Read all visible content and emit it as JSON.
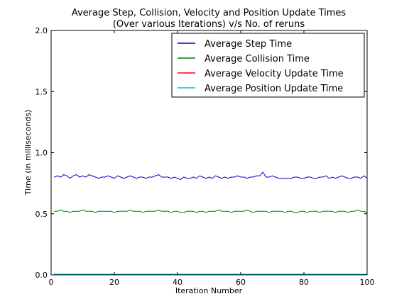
{
  "chart_data": {
    "type": "line",
    "title_lines": [
      "Average Step, Collision, Velocity and Position Update Times",
      "(Over various Iterations) v/s No. of reruns"
    ],
    "xlabel": "Iteration Number",
    "ylabel": "Time (in milliseconds)",
    "xlim": [
      0,
      100
    ],
    "ylim": [
      0.0,
      2.0
    ],
    "xticks": [
      "0",
      "20",
      "40",
      "60",
      "80",
      "100"
    ],
    "yticks": [
      "0.0",
      "0.5",
      "1.0",
      "1.5",
      "2.0"
    ],
    "grid": false,
    "legend_position": "top-right",
    "x": [
      1,
      2,
      3,
      4,
      5,
      6,
      7,
      8,
      9,
      10,
      11,
      12,
      13,
      14,
      15,
      16,
      17,
      18,
      19,
      20,
      21,
      22,
      23,
      24,
      25,
      26,
      27,
      28,
      29,
      30,
      31,
      32,
      33,
      34,
      35,
      36,
      37,
      38,
      39,
      40,
      41,
      42,
      43,
      44,
      45,
      46,
      47,
      48,
      49,
      50,
      51,
      52,
      53,
      54,
      55,
      56,
      57,
      58,
      59,
      60,
      61,
      62,
      63,
      64,
      65,
      66,
      67,
      68,
      69,
      70,
      71,
      72,
      73,
      74,
      75,
      76,
      77,
      78,
      79,
      80,
      81,
      82,
      83,
      84,
      85,
      86,
      87,
      88,
      89,
      90,
      91,
      92,
      93,
      94,
      95,
      96,
      97,
      98,
      99,
      100
    ],
    "series": [
      {
        "name": "Average Step Time",
        "color": "#0000cc",
        "values": [
          0.8,
          0.81,
          0.8,
          0.82,
          0.81,
          0.79,
          0.81,
          0.82,
          0.8,
          0.81,
          0.8,
          0.82,
          0.81,
          0.8,
          0.79,
          0.8,
          0.8,
          0.81,
          0.8,
          0.79,
          0.81,
          0.8,
          0.79,
          0.8,
          0.81,
          0.8,
          0.79,
          0.8,
          0.8,
          0.79,
          0.8,
          0.8,
          0.81,
          0.82,
          0.8,
          0.8,
          0.8,
          0.79,
          0.8,
          0.79,
          0.78,
          0.8,
          0.79,
          0.79,
          0.8,
          0.79,
          0.81,
          0.8,
          0.79,
          0.8,
          0.79,
          0.81,
          0.8,
          0.79,
          0.8,
          0.79,
          0.8,
          0.8,
          0.81,
          0.8,
          0.8,
          0.79,
          0.8,
          0.8,
          0.81,
          0.81,
          0.84,
          0.8,
          0.8,
          0.81,
          0.8,
          0.79,
          0.79,
          0.79,
          0.79,
          0.79,
          0.8,
          0.8,
          0.79,
          0.79,
          0.8,
          0.8,
          0.79,
          0.79,
          0.8,
          0.8,
          0.81,
          0.79,
          0.8,
          0.79,
          0.8,
          0.81,
          0.8,
          0.79,
          0.79,
          0.8,
          0.8,
          0.79,
          0.81,
          0.79
        ]
      },
      {
        "name": "Average Collision Time",
        "color": "#008000",
        "values": [
          0.52,
          0.52,
          0.53,
          0.52,
          0.52,
          0.51,
          0.52,
          0.52,
          0.52,
          0.53,
          0.52,
          0.52,
          0.52,
          0.51,
          0.52,
          0.52,
          0.52,
          0.52,
          0.52,
          0.51,
          0.52,
          0.52,
          0.52,
          0.52,
          0.53,
          0.52,
          0.52,
          0.52,
          0.51,
          0.52,
          0.52,
          0.52,
          0.52,
          0.53,
          0.52,
          0.52,
          0.52,
          0.51,
          0.52,
          0.52,
          0.51,
          0.51,
          0.52,
          0.52,
          0.52,
          0.51,
          0.52,
          0.52,
          0.51,
          0.52,
          0.52,
          0.52,
          0.53,
          0.52,
          0.52,
          0.52,
          0.51,
          0.52,
          0.52,
          0.52,
          0.52,
          0.53,
          0.52,
          0.51,
          0.52,
          0.52,
          0.52,
          0.52,
          0.51,
          0.52,
          0.52,
          0.52,
          0.52,
          0.51,
          0.52,
          0.52,
          0.51,
          0.51,
          0.52,
          0.52,
          0.51,
          0.52,
          0.52,
          0.52,
          0.51,
          0.52,
          0.52,
          0.52,
          0.52,
          0.51,
          0.52,
          0.52,
          0.52,
          0.51,
          0.52,
          0.52,
          0.53,
          0.52,
          0.52,
          0.51
        ]
      },
      {
        "name": "Average Velocity Update Time",
        "color": "#ff0000",
        "values": [
          0.004,
          0.004,
          0.004,
          0.004,
          0.004,
          0.004,
          0.004,
          0.004,
          0.004,
          0.004,
          0.004,
          0.004,
          0.004,
          0.004,
          0.004,
          0.004,
          0.004,
          0.004,
          0.004,
          0.004,
          0.004,
          0.004,
          0.004,
          0.004,
          0.004,
          0.004,
          0.004,
          0.004,
          0.004,
          0.004,
          0.004,
          0.004,
          0.004,
          0.004,
          0.004,
          0.004,
          0.004,
          0.004,
          0.004,
          0.004,
          0.004,
          0.004,
          0.004,
          0.004,
          0.004,
          0.004,
          0.004,
          0.004,
          0.004,
          0.004,
          0.004,
          0.004,
          0.004,
          0.004,
          0.004,
          0.004,
          0.004,
          0.004,
          0.004,
          0.004,
          0.004,
          0.004,
          0.004,
          0.004,
          0.004,
          0.004,
          0.004,
          0.004,
          0.004,
          0.004,
          0.004,
          0.004,
          0.004,
          0.004,
          0.004,
          0.004,
          0.004,
          0.004,
          0.004,
          0.004,
          0.004,
          0.004,
          0.004,
          0.004,
          0.004,
          0.004,
          0.004,
          0.004,
          0.004,
          0.004,
          0.004,
          0.004,
          0.004,
          0.004,
          0.004,
          0.004,
          0.004,
          0.004,
          0.004,
          0.004
        ]
      },
      {
        "name": "Average Position Update Time",
        "color": "#00bfbf",
        "values": [
          0.004,
          0.004,
          0.004,
          0.004,
          0.004,
          0.004,
          0.004,
          0.004,
          0.004,
          0.004,
          0.004,
          0.004,
          0.004,
          0.004,
          0.004,
          0.004,
          0.004,
          0.004,
          0.004,
          0.004,
          0.004,
          0.004,
          0.004,
          0.004,
          0.004,
          0.004,
          0.004,
          0.004,
          0.004,
          0.004,
          0.004,
          0.004,
          0.004,
          0.004,
          0.004,
          0.004,
          0.004,
          0.004,
          0.004,
          0.004,
          0.004,
          0.004,
          0.004,
          0.004,
          0.004,
          0.004,
          0.004,
          0.004,
          0.004,
          0.004,
          0.004,
          0.004,
          0.004,
          0.004,
          0.004,
          0.004,
          0.004,
          0.004,
          0.004,
          0.004,
          0.004,
          0.004,
          0.004,
          0.004,
          0.004,
          0.004,
          0.004,
          0.004,
          0.004,
          0.004,
          0.004,
          0.004,
          0.004,
          0.004,
          0.004,
          0.004,
          0.004,
          0.004,
          0.004,
          0.004,
          0.004,
          0.004,
          0.004,
          0.004,
          0.004,
          0.004,
          0.004,
          0.004,
          0.004,
          0.004,
          0.004,
          0.004,
          0.004,
          0.004,
          0.004,
          0.004,
          0.004,
          0.004,
          0.004,
          0.004
        ]
      }
    ]
  }
}
